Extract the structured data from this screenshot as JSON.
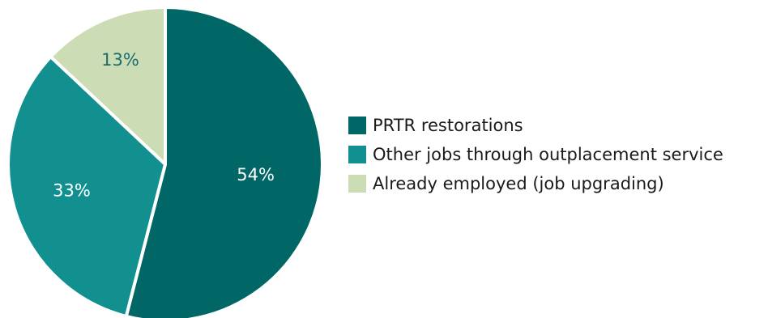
{
  "chart_data": {
    "type": "pie",
    "title": "",
    "start_angle_deg": 0,
    "direction": "clockwise",
    "legend_position": "right",
    "slices": [
      {
        "name": "PRTR restorations",
        "value": 54,
        "label": "54%",
        "color": "#006666",
        "label_color": "#ffffff"
      },
      {
        "name": "Other jobs through outplacement service",
        "value": 33,
        "label": "33%",
        "color": "#128f8f",
        "label_color": "#ffffff"
      },
      {
        "name": "Already employed (job upgrading)",
        "value": 13,
        "label": "13%",
        "color": "#ccdcb4",
        "label_color": "#1c6d6d"
      }
    ]
  }
}
